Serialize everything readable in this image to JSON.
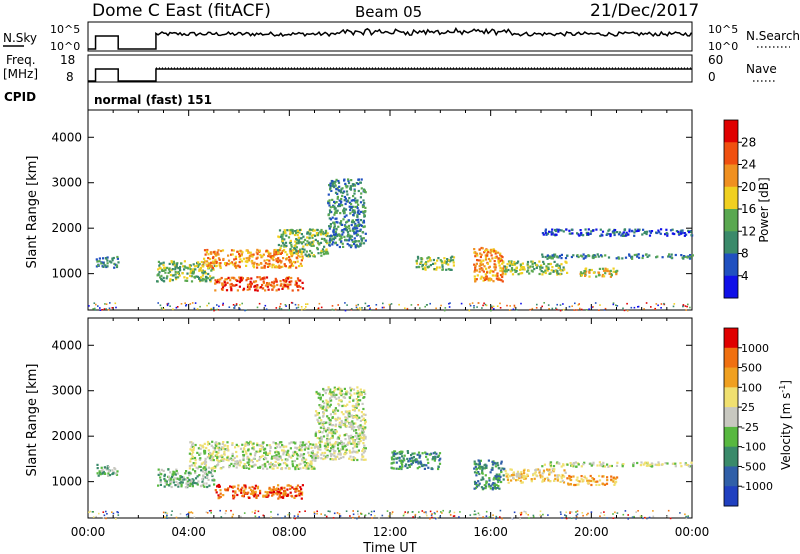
{
  "header": {
    "title": "Dome C East (fitACF)",
    "beam": "Beam 05",
    "date": "21/Dec/2017"
  },
  "strips": {
    "nsky_label": "N.Sky",
    "nsky_ticks": [
      "10^5",
      "10^0"
    ],
    "nsearch_label": "N.Search",
    "nsearch_ticks": [
      "10^5",
      "10^0"
    ],
    "freq_label": "Freq.",
    "freq_unit": "[MHz]",
    "freq_ticks": [
      "18",
      "8"
    ],
    "nave_label": "Nave",
    "nave_ticks": [
      "60",
      "0"
    ],
    "cpid_label": "CPID",
    "cpid_value": "normal (fast) 151"
  },
  "chart_data": [
    {
      "type": "heatmap",
      "panel": "power",
      "ylabel": "Slant Range [km]",
      "y_ticks": [
        1000,
        2000,
        3000,
        4000
      ],
      "ylim": [
        200,
        4600
      ],
      "xlim": [
        0,
        24
      ],
      "x_ticks": [
        "00:00",
        "04:00",
        "08:00",
        "12:00",
        "16:00",
        "20:00",
        "00:00"
      ],
      "colorbar": {
        "label": "Power [dB]",
        "ticks": [
          "4",
          "8",
          "12",
          "16",
          "20",
          "24",
          "28"
        ],
        "colors": [
          "#1010e8",
          "#2050c0",
          "#3a8a6a",
          "#5aa850",
          "#f0d020",
          "#f09020",
          "#f05010",
          "#e00000"
        ]
      },
      "echo_bands": [
        {
          "t0": 0.3,
          "t1": 1.2,
          "r0": 1150,
          "r1": 1400,
          "level": 2
        },
        {
          "t0": 2.7,
          "t1": 5.0,
          "r0": 850,
          "r1": 1300,
          "level": 3
        },
        {
          "t0": 5.0,
          "t1": 8.5,
          "r0": 650,
          "r1": 950,
          "level": 6
        },
        {
          "t0": 4.5,
          "t1": 8.5,
          "r0": 1150,
          "r1": 1550,
          "level": 5
        },
        {
          "t0": 7.5,
          "t1": 9.5,
          "r0": 1400,
          "r1": 2000,
          "level": 3
        },
        {
          "t0": 9.5,
          "t1": 11.0,
          "r0": 1600,
          "r1": 3100,
          "level": 2
        },
        {
          "t0": 13.0,
          "t1": 14.5,
          "r0": 1100,
          "r1": 1400,
          "level": 3
        },
        {
          "t0": 15.3,
          "t1": 16.5,
          "r0": 850,
          "r1": 1600,
          "level": 5
        },
        {
          "t0": 16.5,
          "t1": 19.0,
          "r0": 1000,
          "r1": 1300,
          "level": 3
        },
        {
          "t0": 19.5,
          "t1": 21.0,
          "r0": 950,
          "r1": 1150,
          "level": 4
        },
        {
          "t0": 18.0,
          "t1": 24.0,
          "r0": 1350,
          "r1": 1450,
          "level": 2
        },
        {
          "t0": 18.0,
          "t1": 24.0,
          "r0": 1850,
          "r1": 2000,
          "level": 1
        }
      ]
    },
    {
      "type": "heatmap",
      "panel": "velocity",
      "ylabel": "Slant Range [km]",
      "y_ticks": [
        1000,
        2000,
        3000,
        4000
      ],
      "ylim": [
        200,
        4600
      ],
      "xlim": [
        0,
        24
      ],
      "x_ticks": [
        "00:00",
        "04:00",
        "08:00",
        "12:00",
        "16:00",
        "20:00",
        "00:00"
      ],
      "xlabel": "Time UT",
      "colorbar": {
        "label": "Velocity [m s",
        "label_sup": "-1",
        "label_end": "]",
        "ticks": [
          "1000",
          "500",
          "100",
          "25",
          "-25",
          "-100",
          "-500",
          "-1000"
        ],
        "colors": [
          "#2040c0",
          "#305fa8",
          "#3a8a6a",
          "#58b840",
          "#c8c8c0",
          "#f0e070",
          "#f0a020",
          "#f07010",
          "#e00000"
        ]
      },
      "echo_bands": [
        {
          "t0": 0.3,
          "t1": 1.2,
          "r0": 1150,
          "r1": 1400,
          "level": 3
        },
        {
          "t0": 2.7,
          "t1": 5.0,
          "r0": 900,
          "r1": 1300,
          "level": 3
        },
        {
          "t0": 5.0,
          "t1": 8.5,
          "r0": 650,
          "r1": 950,
          "level": 7
        },
        {
          "t0": 4.0,
          "t1": 9.0,
          "r0": 1300,
          "r1": 1900,
          "level": 4
        },
        {
          "t0": 9.0,
          "t1": 11.0,
          "r0": 1500,
          "r1": 3100,
          "level": 4
        },
        {
          "t0": 12.0,
          "t1": 14.0,
          "r0": 1300,
          "r1": 1700,
          "level": 2
        },
        {
          "t0": 15.3,
          "t1": 16.5,
          "r0": 850,
          "r1": 1500,
          "level": 2
        },
        {
          "t0": 16.5,
          "t1": 19.0,
          "r0": 1000,
          "r1": 1300,
          "level": 5
        },
        {
          "t0": 19.0,
          "t1": 21.0,
          "r0": 950,
          "r1": 1150,
          "level": 6
        },
        {
          "t0": 18.0,
          "t1": 24.0,
          "r0": 1350,
          "r1": 1450,
          "level": 4
        }
      ]
    }
  ]
}
